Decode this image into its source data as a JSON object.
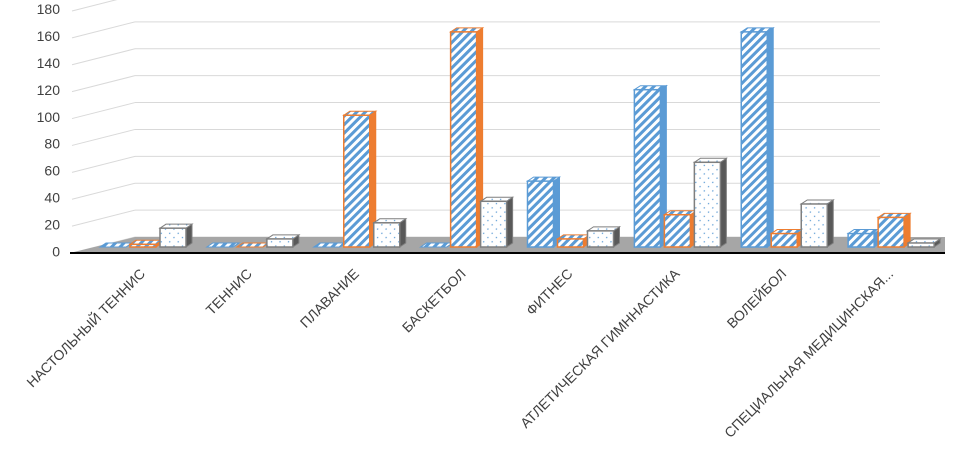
{
  "chart_data": {
    "type": "bar3d",
    "categories": [
      "НАСТОЛЬНЫЙ ТЕННИС",
      "ТЕННИС",
      "ПЛАВАНИЕ",
      "БАСКЕТБОЛ",
      "ФИТНЕС",
      "АТЛЕТИЧЕСКАЯ ГИМННАСТИКА",
      "ВОЛЕЙБОЛ",
      "СПЕЦИАЛЬНАЯ МЕДИЦИНСКАЯ..."
    ],
    "series": [
      {
        "color": "#5b9bd5",
        "pattern": "hatch",
        "values": [
          0,
          0,
          0,
          0,
          49,
          117,
          160,
          10
        ]
      },
      {
        "color": "#ed7d31",
        "pattern": "hatch",
        "values": [
          2,
          0,
          98,
          160,
          6,
          24,
          10,
          22
        ]
      },
      {
        "color": "#7f7f7f",
        "pattern": "dots",
        "values": [
          14,
          6,
          18,
          34,
          12,
          63,
          32,
          3
        ]
      }
    ],
    "ylim": [
      0,
      180
    ],
    "yticks": [
      0,
      20,
      40,
      60,
      80,
      100,
      120,
      140,
      160,
      180
    ],
    "grid": true
  }
}
